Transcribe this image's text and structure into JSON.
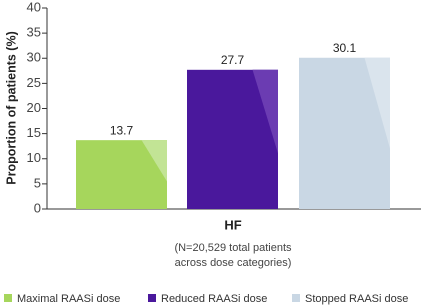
{
  "chart_data": {
    "type": "bar",
    "y_label": "Proportion of patients (%)",
    "categories": [
      "HF"
    ],
    "note": [
      "(N=20,529 total patients",
      "across dose categories)"
    ],
    "series": [
      {
        "name": "Maximal RAASi dose",
        "color": "#a6d65c",
        "highlight": "#c2e495",
        "values": [
          13.7
        ]
      },
      {
        "name": "Reduced RAASi dose",
        "color": "#4a189c",
        "highlight": "#6b3cb2",
        "values": [
          27.7
        ]
      },
      {
        "name": "Stopped RAASi dose",
        "color": "#c9d7e4",
        "highlight": "#dae4ed",
        "values": [
          30.1
        ]
      }
    ],
    "ylim": [
      0,
      40
    ],
    "yticks": [
      0,
      5,
      10,
      15,
      20,
      25,
      30,
      35,
      40
    ],
    "legend": "bottom"
  }
}
